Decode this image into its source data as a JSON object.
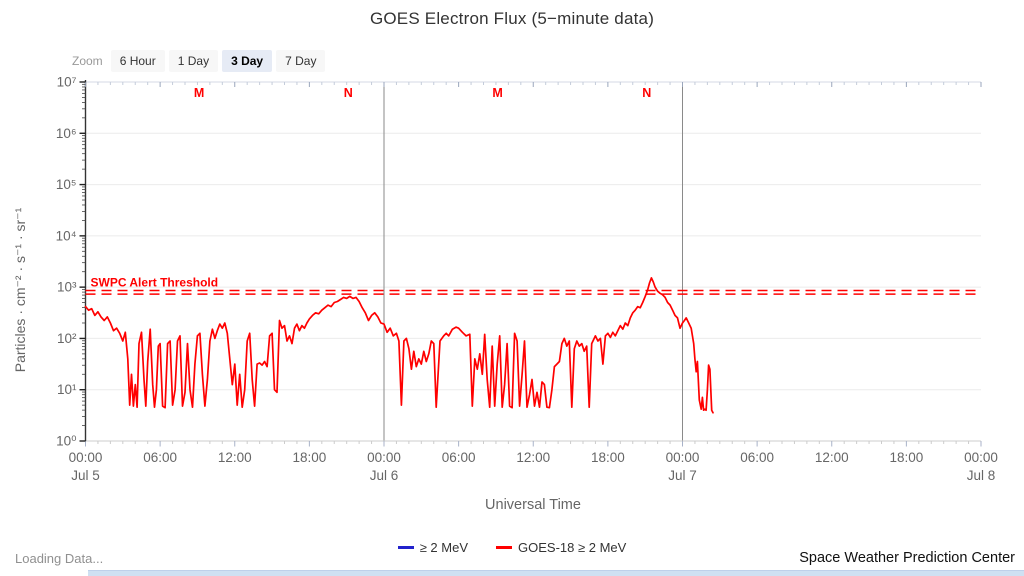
{
  "title": "GOES Electron Flux (5−minute data)",
  "zoom_bar": {
    "label": "Zoom",
    "options": [
      {
        "label": "6 Hour",
        "selected": false
      },
      {
        "label": "1 Day",
        "selected": false
      },
      {
        "label": "3 Day",
        "selected": true
      },
      {
        "label": "7 Day",
        "selected": false
      }
    ]
  },
  "chart_data": {
    "type": "line",
    "title": "GOES Electron Flux (5-minute data)",
    "xlabel": "Universal Time",
    "ylabel": "Particles · cm⁻² · s⁻¹ · sr⁻¹",
    "x_unit": "hours since Jul 5 00:00 UTC",
    "x_range_hours": [
      0,
      72
    ],
    "y_scale": "log10",
    "y_log_range": [
      0,
      7
    ],
    "y_tick_labels": [
      "10⁰",
      "10¹",
      "10²",
      "10³",
      "10⁴",
      "10⁵",
      "10⁶",
      "10⁷"
    ],
    "x_ticks": [
      {
        "hour": 0,
        "time": "00:00",
        "day": "Jul 5"
      },
      {
        "hour": 6,
        "time": "06:00"
      },
      {
        "hour": 12,
        "time": "12:00"
      },
      {
        "hour": 18,
        "time": "18:00"
      },
      {
        "hour": 24,
        "time": "00:00",
        "day": "Jul 6"
      },
      {
        "hour": 30,
        "time": "06:00"
      },
      {
        "hour": 36,
        "time": "12:00"
      },
      {
        "hour": 42,
        "time": "18:00"
      },
      {
        "hour": 48,
        "time": "00:00",
        "day": "Jul 7"
      },
      {
        "hour": 54,
        "time": "06:00"
      },
      {
        "hour": 60,
        "time": "12:00"
      },
      {
        "hour": 66,
        "time": "18:00"
      },
      {
        "hour": 72,
        "time": "00:00",
        "day": "Jul 8"
      }
    ],
    "day_boundaries_hours": [
      24,
      48
    ],
    "satellite_markers": [
      {
        "hour": 9.13,
        "label": "M"
      },
      {
        "hour": 21.13,
        "label": "N"
      },
      {
        "hour": 33.13,
        "label": "M"
      },
      {
        "hour": 45.13,
        "label": "N"
      }
    ],
    "threshold": {
      "label": "SWPC Alert Threshold",
      "log10_value": 2.9,
      "color": "#ff0000"
    },
    "grid": "horizontal-decades",
    "legend_position": "bottom-center",
    "series": [
      {
        "name": "≥ 2 MeV",
        "color": "#2222cc",
        "points": []
      },
      {
        "name": "GOES-18 ≥ 2 MeV",
        "color": "#ff0000",
        "points": [
          [
            0.0,
            2.62
          ],
          [
            0.25,
            2.55
          ],
          [
            0.5,
            2.58
          ],
          [
            0.75,
            2.45
          ],
          [
            1.0,
            2.52
          ],
          [
            1.25,
            2.42
          ],
          [
            1.5,
            2.35
          ],
          [
            1.75,
            2.42
          ],
          [
            2.0,
            2.3
          ],
          [
            2.25,
            2.15
          ],
          [
            2.5,
            2.2
          ],
          [
            2.75,
            2.1
          ],
          [
            3.0,
            1.95
          ],
          [
            3.2,
            2.12
          ],
          [
            3.4,
            1.6
          ],
          [
            3.55,
            0.7
          ],
          [
            3.7,
            1.3
          ],
          [
            3.85,
            0.68
          ],
          [
            4.0,
            1.1
          ],
          [
            4.15,
            0.66
          ],
          [
            4.3,
            1.9
          ],
          [
            4.5,
            2.12
          ],
          [
            4.7,
            1.2
          ],
          [
            4.85,
            0.68
          ],
          [
            5.0,
            1.55
          ],
          [
            5.2,
            2.18
          ],
          [
            5.4,
            1.1
          ],
          [
            5.55,
            0.66
          ],
          [
            5.7,
            1.0
          ],
          [
            5.85,
            1.85
          ],
          [
            6.0,
            1.9
          ],
          [
            6.2,
            0.68
          ],
          [
            6.4,
            0.65
          ],
          [
            6.6,
            1.9
          ],
          [
            6.8,
            1.95
          ],
          [
            7.0,
            0.7
          ],
          [
            7.2,
            1.0
          ],
          [
            7.4,
            1.95
          ],
          [
            7.6,
            2.05
          ],
          [
            7.8,
            0.68
          ],
          [
            8.0,
            0.95
          ],
          [
            8.2,
            1.9
          ],
          [
            8.4,
            1.0
          ],
          [
            8.6,
            0.66
          ],
          [
            8.8,
            1.5
          ],
          [
            9.0,
            2.05
          ],
          [
            9.2,
            2.1
          ],
          [
            9.4,
            1.3
          ],
          [
            9.6,
            0.68
          ],
          [
            9.8,
            1.2
          ],
          [
            10.0,
            1.95
          ],
          [
            10.2,
            2.18
          ],
          [
            10.4,
            2.0
          ],
          [
            10.6,
            2.15
          ],
          [
            10.8,
            2.28
          ],
          [
            11.0,
            2.2
          ],
          [
            11.2,
            2.3
          ],
          [
            11.4,
            2.1
          ],
          [
            11.6,
            1.6
          ],
          [
            11.8,
            1.1
          ],
          [
            12.0,
            1.5
          ],
          [
            12.2,
            0.7
          ],
          [
            12.4,
            1.3
          ],
          [
            12.6,
            0.66
          ],
          [
            12.8,
            1.0
          ],
          [
            13.0,
            1.95
          ],
          [
            13.2,
            2.1
          ],
          [
            13.4,
            1.2
          ],
          [
            13.6,
            0.68
          ],
          [
            13.8,
            1.5
          ],
          [
            14.0,
            1.52
          ],
          [
            14.2,
            1.48
          ],
          [
            14.4,
            1.55
          ],
          [
            14.6,
            1.45
          ],
          [
            14.8,
            2.05
          ],
          [
            15.0,
            2.1
          ],
          [
            15.2,
            1.0
          ],
          [
            15.4,
            0.95
          ],
          [
            15.6,
            2.35
          ],
          [
            15.8,
            2.2
          ],
          [
            16.0,
            2.25
          ],
          [
            16.2,
            1.95
          ],
          [
            16.4,
            2.05
          ],
          [
            16.6,
            1.9
          ],
          [
            16.8,
            2.2
          ],
          [
            17.0,
            2.28
          ],
          [
            17.2,
            2.15
          ],
          [
            17.4,
            2.25
          ],
          [
            17.6,
            2.2
          ],
          [
            17.8,
            2.3
          ],
          [
            18.0,
            2.38
          ],
          [
            18.25,
            2.45
          ],
          [
            18.5,
            2.5
          ],
          [
            18.75,
            2.48
          ],
          [
            19.0,
            2.55
          ],
          [
            19.25,
            2.6
          ],
          [
            19.5,
            2.65
          ],
          [
            19.75,
            2.62
          ],
          [
            20.0,
            2.7
          ],
          [
            20.25,
            2.72
          ],
          [
            20.5,
            2.76
          ],
          [
            20.75,
            2.8
          ],
          [
            21.0,
            2.78
          ],
          [
            21.25,
            2.82
          ],
          [
            21.5,
            2.78
          ],
          [
            21.75,
            2.8
          ],
          [
            22.0,
            2.72
          ],
          [
            22.25,
            2.6
          ],
          [
            22.5,
            2.5
          ],
          [
            22.75,
            2.35
          ],
          [
            23.0,
            2.45
          ],
          [
            23.25,
            2.5
          ],
          [
            23.5,
            2.42
          ],
          [
            23.75,
            2.3
          ],
          [
            24.0,
            2.28
          ],
          [
            24.25,
            2.12
          ],
          [
            24.5,
            2.2
          ],
          [
            24.75,
            2.05
          ],
          [
            25.0,
            2.1
          ],
          [
            25.2,
            1.95
          ],
          [
            25.4,
            0.7
          ],
          [
            25.6,
            1.95
          ],
          [
            25.8,
            2.0
          ],
          [
            26.0,
            1.8
          ],
          [
            26.2,
            1.4
          ],
          [
            26.4,
            1.75
          ],
          [
            26.6,
            1.45
          ],
          [
            26.8,
            1.6
          ],
          [
            27.0,
            1.5
          ],
          [
            27.2,
            1.75
          ],
          [
            27.4,
            1.55
          ],
          [
            27.6,
            1.7
          ],
          [
            27.8,
            1.95
          ],
          [
            28.0,
            1.9
          ],
          [
            28.2,
            0.66
          ],
          [
            28.5,
            1.95
          ],
          [
            28.8,
            2.05
          ],
          [
            29.0,
            2.1
          ],
          [
            29.2,
            2.05
          ],
          [
            29.5,
            2.18
          ],
          [
            29.8,
            2.22
          ],
          [
            30.0,
            2.2
          ],
          [
            30.3,
            2.12
          ],
          [
            30.6,
            2.05
          ],
          [
            30.9,
            2.08
          ],
          [
            31.1,
            0.68
          ],
          [
            31.3,
            1.6
          ],
          [
            31.5,
            1.4
          ],
          [
            31.7,
            1.7
          ],
          [
            31.9,
            1.3
          ],
          [
            32.1,
            2.08
          ],
          [
            32.3,
            1.2
          ],
          [
            32.5,
            0.66
          ],
          [
            32.7,
            1.85
          ],
          [
            32.9,
            0.68
          ],
          [
            33.1,
            1.5
          ],
          [
            33.3,
            2.05
          ],
          [
            33.5,
            0.66
          ],
          [
            33.7,
            1.1
          ],
          [
            33.9,
            1.9
          ],
          [
            34.1,
            0.68
          ],
          [
            34.3,
            0.65
          ],
          [
            34.5,
            2.1
          ],
          [
            34.7,
            1.95
          ],
          [
            34.9,
            0.68
          ],
          [
            35.1,
            1.3
          ],
          [
            35.3,
            1.95
          ],
          [
            35.5,
            0.66
          ],
          [
            35.7,
            0.9
          ],
          [
            35.9,
            1.2
          ],
          [
            36.1,
            0.68
          ],
          [
            36.3,
            0.95
          ],
          [
            36.5,
            0.66
          ],
          [
            36.7,
            1.15
          ],
          [
            36.9,
            1.1
          ],
          [
            37.1,
            0.66
          ],
          [
            37.3,
            0.65
          ],
          [
            37.5,
            1.0
          ],
          [
            37.7,
            1.45
          ],
          [
            37.9,
            1.5
          ],
          [
            38.1,
            1.55
          ],
          [
            38.3,
            1.9
          ],
          [
            38.5,
            2.0
          ],
          [
            38.7,
            1.85
          ],
          [
            38.9,
            1.95
          ],
          [
            39.1,
            0.66
          ],
          [
            39.3,
            1.8
          ],
          [
            39.5,
            1.95
          ],
          [
            39.7,
            1.85
          ],
          [
            39.9,
            1.9
          ],
          [
            40.1,
            1.75
          ],
          [
            40.3,
            1.85
          ],
          [
            40.5,
            0.66
          ],
          [
            40.7,
            1.9
          ],
          [
            41.0,
            2.05
          ],
          [
            41.2,
            1.95
          ],
          [
            41.4,
            2.0
          ],
          [
            41.6,
            1.5
          ],
          [
            41.8,
            2.05
          ],
          [
            42.0,
            2.1
          ],
          [
            42.2,
            2.02
          ],
          [
            42.4,
            2.12
          ],
          [
            42.6,
            2.05
          ],
          [
            42.8,
            2.15
          ],
          [
            43.0,
            2.25
          ],
          [
            43.2,
            2.18
          ],
          [
            43.4,
            2.3
          ],
          [
            43.6,
            2.25
          ],
          [
            43.8,
            2.4
          ],
          [
            44.0,
            2.5
          ],
          [
            44.2,
            2.55
          ],
          [
            44.4,
            2.62
          ],
          [
            44.6,
            2.6
          ],
          [
            44.8,
            2.7
          ],
          [
            45.0,
            2.82
          ],
          [
            45.2,
            2.95
          ],
          [
            45.35,
            3.08
          ],
          [
            45.5,
            3.18
          ],
          [
            45.65,
            3.1
          ],
          [
            45.8,
            3.0
          ],
          [
            46.0,
            2.92
          ],
          [
            46.2,
            2.88
          ],
          [
            46.4,
            2.85
          ],
          [
            46.6,
            2.8
          ],
          [
            46.8,
            2.7
          ],
          [
            47.0,
            2.65
          ],
          [
            47.2,
            2.55
          ],
          [
            47.4,
            2.45
          ],
          [
            47.6,
            2.4
          ],
          [
            47.8,
            2.2
          ],
          [
            48.0,
            2.3
          ],
          [
            48.15,
            2.35
          ],
          [
            48.3,
            2.4
          ],
          [
            48.5,
            2.3
          ],
          [
            48.7,
            2.2
          ],
          [
            48.9,
            1.9
          ],
          [
            49.0,
            1.6
          ],
          [
            49.1,
            1.35
          ],
          [
            49.2,
            1.55
          ],
          [
            49.35,
            0.8
          ],
          [
            49.5,
            0.62
          ],
          [
            49.6,
            0.85
          ],
          [
            49.7,
            0.6
          ],
          [
            49.8,
            0.62
          ],
          [
            49.9,
            0.6
          ],
          [
            50.0,
            1.0
          ],
          [
            50.1,
            1.48
          ],
          [
            50.2,
            1.4
          ],
          [
            50.35,
            0.6
          ],
          [
            50.45,
            0.55
          ]
        ]
      }
    ]
  },
  "footer": {
    "loading": "Loading Data...",
    "attribution": "Space Weather Prediction Center"
  },
  "colors": {
    "series_red": "#ff0000",
    "series_blue": "#2222cc",
    "threshold_red": "#ff0000",
    "marker_red": "#ff0000",
    "axis_text": "#666666",
    "title_text": "#333333",
    "selected_zoom_bg": "#e6ebf5",
    "zoom_btn_bg": "#f7f7f7",
    "scrollbar": "#cfe0f2"
  }
}
